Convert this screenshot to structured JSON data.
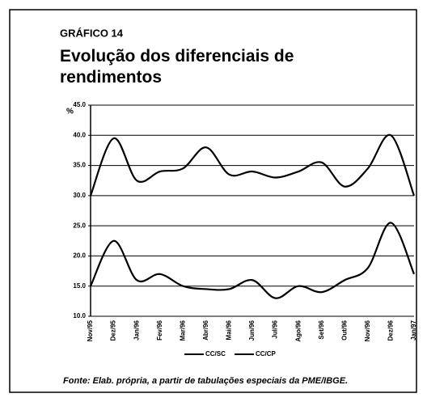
{
  "chart_data": {
    "type": "line",
    "kicker": "GRÁFICO 14",
    "title": "Evolução dos diferenciais de rendimentos",
    "y_label": "%",
    "source": "Fonte: Elab. própria, a partir de tabulações especiais da PME/IBGE.",
    "categories": [
      "Nov/95",
      "Dez/95",
      "Jan/96",
      "Fev/96",
      "Mar/96",
      "Abr/96",
      "Mai/96",
      "Jun/96",
      "Jul/96",
      "Ago/96",
      "Set/96",
      "Out/96",
      "Nov/96",
      "Dez/96",
      "Jan/97"
    ],
    "series": [
      {
        "name": "CC/SC",
        "color": "#000000",
        "values": [
          30,
          39.5,
          32.5,
          34,
          34.5,
          38,
          33.5,
          34,
          33,
          34,
          35.5,
          31.5,
          34.5,
          40,
          30
        ]
      },
      {
        "name": "CC/CP",
        "color": "#000000",
        "values": [
          15,
          22.5,
          16,
          17,
          15,
          14.5,
          14.5,
          16,
          13,
          15,
          14,
          16,
          18,
          25.5,
          17
        ]
      }
    ],
    "ylim": [
      10,
      45
    ],
    "yticks": [
      {
        "value": 10,
        "label": "10.0"
      },
      {
        "value": 15,
        "label": "15.0"
      },
      {
        "value": 20,
        "label": "20.0"
      },
      {
        "value": 25,
        "label": "25.0"
      },
      {
        "value": 30,
        "label": "30.0"
      },
      {
        "value": 35,
        "label": "35.0"
      },
      {
        "value": 40,
        "label": "40.0"
      },
      {
        "value": 45,
        "label": "45.0"
      }
    ],
    "grid": true
  }
}
